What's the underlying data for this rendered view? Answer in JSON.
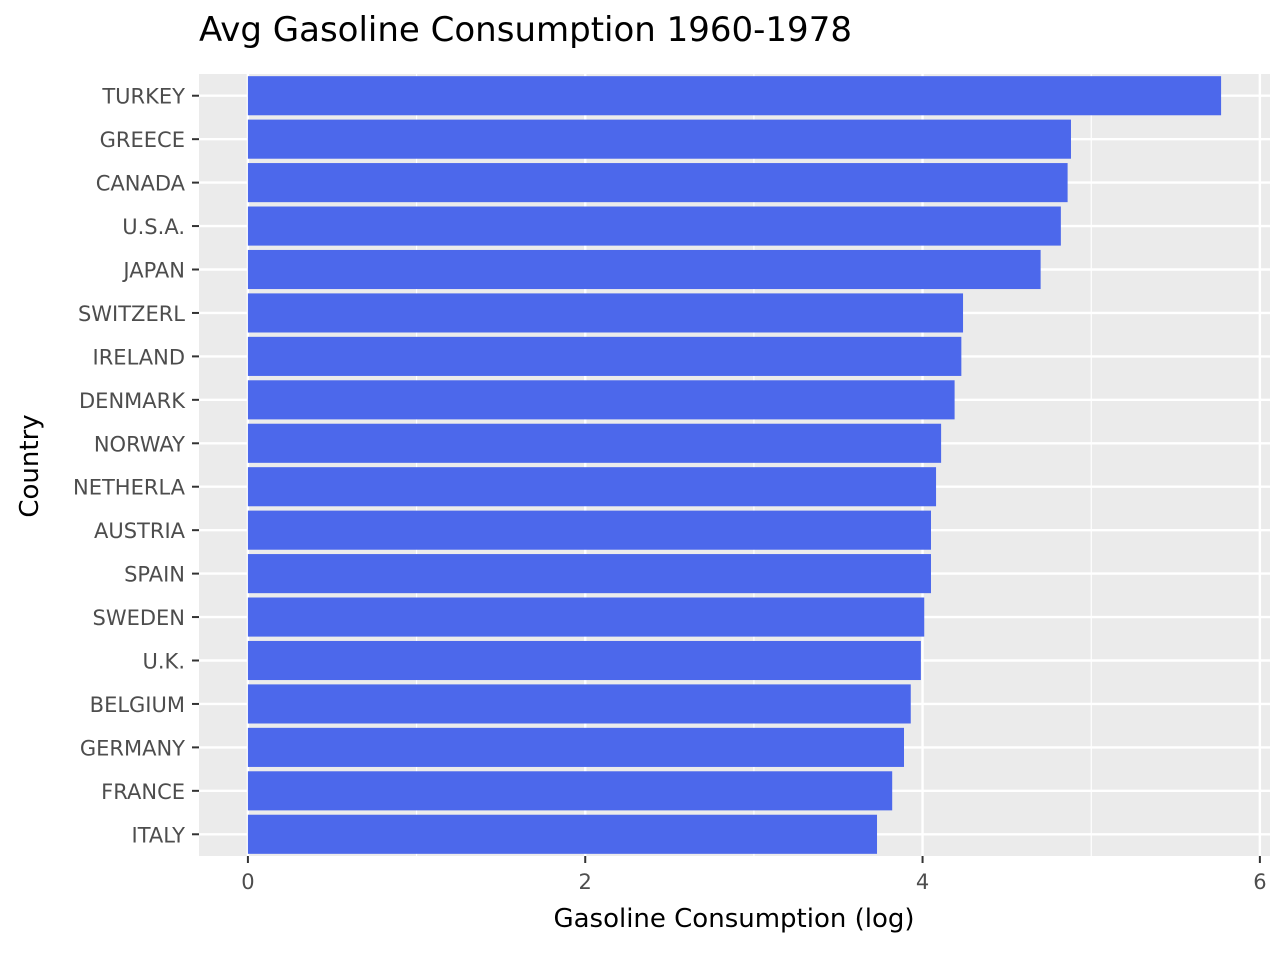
{
  "chart_data": {
    "type": "bar",
    "orientation": "horizontal",
    "title": "Avg Gasoline Consumption 1960-1978",
    "xlabel": "Gasoline Consumption (log)",
    "ylabel": "Country",
    "categories": [
      "TURKEY",
      "GREECE",
      "CANADA",
      "U.S.A.",
      "JAPAN",
      "SWITZERL",
      "IRELAND",
      "DENMARK",
      "NORWAY",
      "NETHERLA",
      "AUSTRIA",
      "SPAIN",
      "SWEDEN",
      "U.K.",
      "BELGIUM",
      "GERMANY",
      "FRANCE",
      "ITALY"
    ],
    "values": [
      5.77,
      4.88,
      4.86,
      4.82,
      4.7,
      4.24,
      4.23,
      4.19,
      4.11,
      4.08,
      4.05,
      4.05,
      4.01,
      3.99,
      3.93,
      3.89,
      3.82,
      3.73
    ],
    "xlim": [
      -0.29,
      6.06
    ],
    "xticks": [
      0,
      2,
      4,
      6
    ],
    "xtick_labels": [
      "0",
      "2",
      "4",
      "6"
    ],
    "bar_color": "#4C68EB",
    "panel_background": "#EBEBEB",
    "grid_color": "#FFFFFF",
    "grid": true,
    "legend": "none"
  }
}
